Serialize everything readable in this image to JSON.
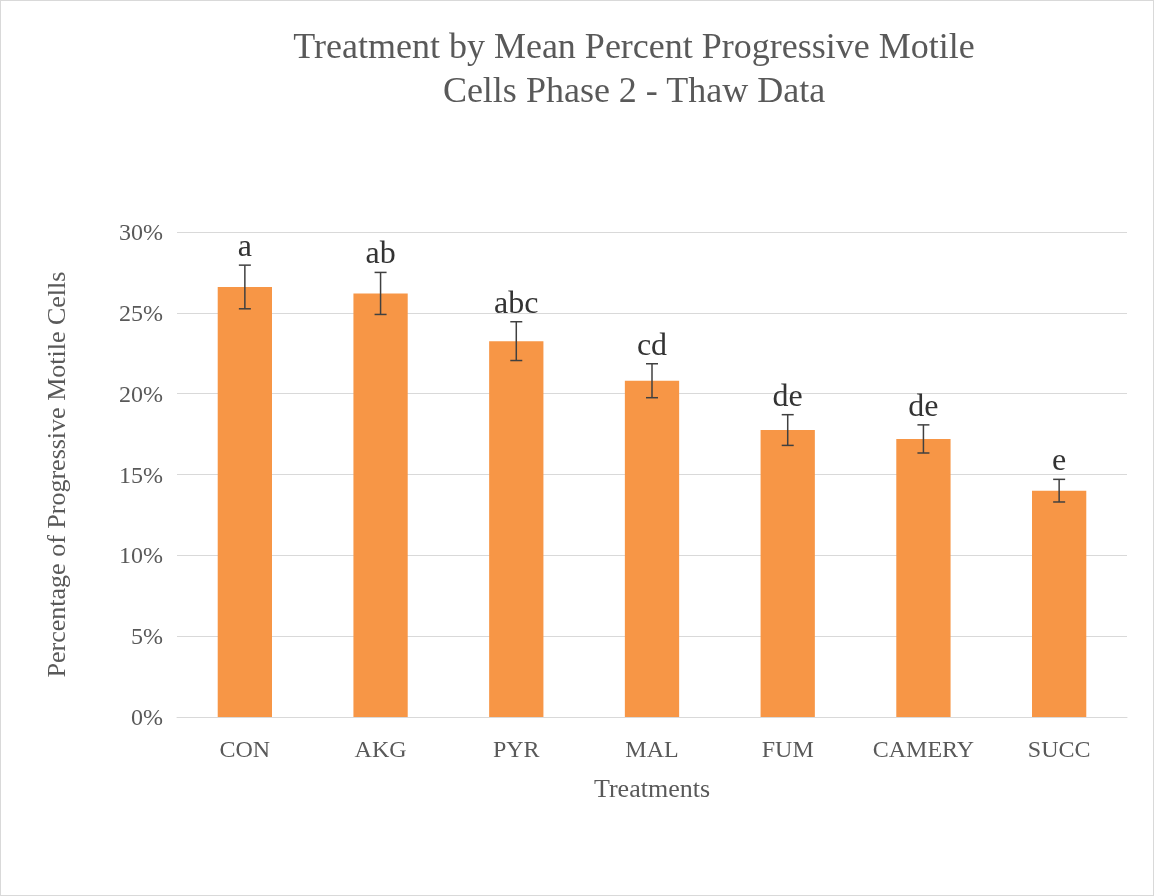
{
  "chart_data": {
    "type": "bar",
    "title": "Treatment by Mean Percent Progressive Motile\nCells Phase 2 - Thaw Data",
    "xlabel": "Treatments",
    "ylabel": "Percentage of Progressive Motile Cells",
    "categories": [
      "CON",
      "AKG",
      "PYR",
      "MAL",
      "FUM",
      "CAMERY",
      "SUCC"
    ],
    "series": [
      {
        "color": "#f79646",
        "values": [
          26.6,
          26.2,
          23.25,
          20.8,
          17.75,
          17.2,
          14.0
        ],
        "errors": [
          1.35,
          1.3,
          1.2,
          1.05,
          0.95,
          0.87,
          0.7
        ]
      }
    ],
    "ylim": [
      0,
      30
    ],
    "yticks": [
      {
        "value": 0,
        "label": "0%"
      },
      {
        "value": 5,
        "label": "5%"
      },
      {
        "value": 10,
        "label": "10%"
      },
      {
        "value": 15,
        "label": "15%"
      },
      {
        "value": 20,
        "label": "20%"
      },
      {
        "value": 25,
        "label": "25%"
      },
      {
        "value": 30,
        "label": "30%"
      }
    ],
    "grid": "y",
    "annotations": [
      "a",
      "ab",
      "abc",
      "cd",
      "de",
      "de",
      "e"
    ]
  }
}
